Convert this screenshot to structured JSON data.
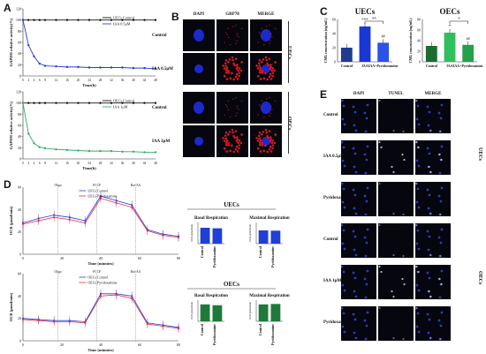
{
  "panels": {
    "a": "A",
    "b": "B",
    "c": "C",
    "d": "D",
    "e": "E"
  },
  "panelA": {
    "top": {
      "ylabel": "GAPDH relative activity(%)",
      "xlabel": "Time(h)",
      "legend": [
        "UECs Control",
        "IAA 0.5μM"
      ],
      "yticks": [
        "0",
        "20",
        "40",
        "60",
        "80",
        "100",
        "120"
      ],
      "xticks": [
        "0",
        "2",
        "4",
        "6",
        "8",
        "12",
        "16",
        "20",
        "24",
        "28",
        "32",
        "36",
        "40",
        "44",
        "48"
      ]
    },
    "bottom": {
      "ylabel": "GAPDH relative activity(%)",
      "xlabel": "Time(h)",
      "legend": [
        "OECs Control",
        "IAA 1μM"
      ],
      "yticks": [
        "0",
        "20",
        "40",
        "60",
        "80",
        "100",
        "120"
      ],
      "xticks": [
        "0",
        "2",
        "4",
        "6",
        "8",
        "12",
        "16",
        "20",
        "24",
        "28",
        "32",
        "36",
        "40",
        "44",
        "48"
      ]
    }
  },
  "chart_data": [
    {
      "type": "line",
      "panel": "A-top",
      "ylabel": "GAPDH relative activity(%)",
      "xlabel": "Time(h)",
      "ylim": [
        0,
        120
      ],
      "x": [
        0,
        2,
        4,
        6,
        8,
        12,
        16,
        20,
        24,
        28,
        32,
        36,
        40,
        44,
        48
      ],
      "series": [
        {
          "name": "UECs Control",
          "values": [
            100,
            100,
            100,
            100,
            100,
            100,
            100,
            100,
            100,
            100,
            100,
            100,
            100,
            100,
            100
          ]
        },
        {
          "name": "IAA 0.5μM",
          "values": [
            100,
            55,
            35,
            22,
            18,
            17,
            16,
            16,
            15,
            15,
            15,
            15,
            14,
            14,
            13
          ]
        }
      ]
    },
    {
      "type": "line",
      "panel": "A-bottom",
      "ylabel": "GAPDH relative activity(%)",
      "xlabel": "Time(h)",
      "ylim": [
        0,
        120
      ],
      "x": [
        0,
        2,
        4,
        6,
        8,
        12,
        16,
        20,
        24,
        28,
        32,
        36,
        40,
        44,
        48
      ],
      "series": [
        {
          "name": "OECs Control",
          "values": [
            100,
            100,
            100,
            100,
            100,
            100,
            100,
            100,
            100,
            100,
            100,
            100,
            100,
            100,
            100
          ]
        },
        {
          "name": "IAA 1μM",
          "values": [
            100,
            45,
            28,
            21,
            19,
            17,
            16,
            15,
            14,
            14,
            14,
            13,
            13,
            12,
            12
          ]
        }
      ]
    },
    {
      "type": "bar",
      "panel": "C-UECs",
      "title": "UECs",
      "ylabel": "CML concentration (ng/mL)",
      "ylim": [
        0,
        60
      ],
      "categories": [
        "Control",
        "IAA",
        "IAA+Pyridoxamine"
      ],
      "values": [
        20,
        50,
        27
      ],
      "colors": [
        "#1f3b8e",
        "#1a37d4",
        "#2a52e8"
      ]
    },
    {
      "type": "bar",
      "panel": "C-OECs",
      "title": "OECs",
      "ylabel": "CML concentration (ng/mL)",
      "ylim": [
        0,
        80
      ],
      "categories": [
        "Control",
        "IAA",
        "IAA+Pyridoxamine"
      ],
      "values": [
        30,
        55,
        32
      ],
      "colors": [
        "#1c6b32",
        "#2fbf5c",
        "#27a04c"
      ]
    },
    {
      "type": "line",
      "panel": "D-top",
      "ylabel": "OCR (pmol/min)",
      "xlabel": "Time (minutes)",
      "ylim": [
        0,
        60
      ],
      "x": [
        0,
        8,
        16,
        24,
        32,
        40,
        48,
        56,
        64,
        72,
        80
      ],
      "series": [
        {
          "name": "UECs Control",
          "values": [
            28,
            32,
            35,
            33,
            30,
            52,
            48,
            44,
            22,
            18,
            16
          ]
        },
        {
          "name": "UECs Pyridoxamine",
          "values": [
            27,
            30,
            33,
            31,
            28,
            50,
            46,
            42,
            21,
            17,
            15
          ]
        }
      ]
    },
    {
      "type": "line",
      "panel": "D-bottom",
      "ylabel": "OCR (pmol/min)",
      "xlabel": "Time (minutes)",
      "ylim": [
        0,
        60
      ],
      "x": [
        0,
        8,
        16,
        24,
        32,
        40,
        48,
        56,
        64,
        72,
        80
      ],
      "series": [
        {
          "name": "OECs Control",
          "values": [
            20,
            19,
            18,
            18,
            17,
            42,
            42,
            40,
            16,
            14,
            12
          ]
        },
        {
          "name": "OECs Pyridoxamine",
          "values": [
            19,
            18,
            17,
            17,
            16,
            40,
            41,
            38,
            15,
            13,
            11
          ]
        }
      ]
    },
    {
      "type": "bar",
      "panel": "D-UECs-basal",
      "title": "Basal Respiration",
      "ylabel": "OCR (pmol/min)",
      "categories": [
        "Control",
        "Pyridoxamine"
      ],
      "values": [
        30,
        29
      ],
      "ylim": [
        0,
        40
      ]
    },
    {
      "type": "bar",
      "panel": "D-UECs-max",
      "title": "Maximal Respiration",
      "ylabel": "OCR (pmol/min)",
      "categories": [
        "Control",
        "Pyridoxamine"
      ],
      "values": [
        50,
        49
      ],
      "ylim": [
        0,
        80
      ]
    },
    {
      "type": "bar",
      "panel": "D-OECs-basal",
      "title": "Basal Respiration",
      "ylabel": "OCR (pmol/min)",
      "categories": [
        "Control",
        "Pyridoxamine"
      ],
      "values": [
        20,
        19
      ],
      "ylim": [
        0,
        25
      ]
    },
    {
      "type": "bar",
      "panel": "D-OECs-max",
      "title": "Maximal Respiration",
      "ylabel": "OCR (pmol/min)",
      "categories": [
        "Control",
        "Pyridoxamine"
      ],
      "values": [
        40,
        41
      ],
      "ylim": [
        0,
        50
      ]
    }
  ],
  "panelB": {
    "cols": [
      "DAPI",
      "GRP78",
      "MERGE"
    ],
    "rows": [
      "Control",
      "IAA 0.5μM",
      "Control",
      "IAA 1μM"
    ],
    "groups": [
      "UECs",
      "OECs"
    ]
  },
  "panelC": {
    "uecs_title": "UECs",
    "oecs_title": "OECs",
    "ylabel": "CML concentration (ng/mL)",
    "uecs_yticks": [
      "0",
      "20",
      "40",
      "60"
    ],
    "oecs_yticks": [
      "0",
      "20",
      "40",
      "60",
      "80"
    ],
    "categories": [
      "Control",
      "IAA",
      "IAA+Pyridoxamine"
    ],
    "uecs_sig": {
      "iaa": "***",
      "pyr": "##",
      "bracket": "**"
    },
    "oecs_sig": {
      "iaa": "*",
      "pyr": "##",
      "bracket": "*"
    }
  },
  "panelD": {
    "ylabel": "OCR (pmol/min)",
    "xlabel": "Time (minutes)",
    "injections": [
      "Oligo",
      "FCCP",
      "Rot/AA"
    ],
    "xticks": [
      "0",
      "20",
      "40",
      "60",
      "80"
    ],
    "yticks": [
      "0",
      "20",
      "40",
      "60"
    ],
    "top_legend": [
      "UECs Control",
      "UECs Pyridoxamine"
    ],
    "bottom_legend": [
      "OECs Control",
      "OECs Pyridoxamine"
    ],
    "uecs_group": "UECs",
    "oecs_group": "OECs",
    "basal": "Basal Respiration",
    "maximal": "Maximal Respiration",
    "bar_cats": [
      "Control",
      "Pyridoxamine"
    ]
  },
  "panelE": {
    "cols": [
      "DAPI",
      "TUNEL",
      "MERGE"
    ],
    "rows": [
      "Control",
      "IAA 0.5μM",
      "Pyridoxamine",
      "Control",
      "IAA 1μM",
      "Pyridoxamine"
    ],
    "groups": [
      "UECs",
      "OECs"
    ]
  }
}
